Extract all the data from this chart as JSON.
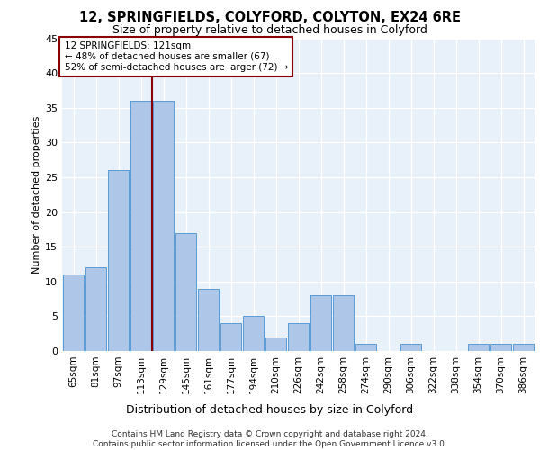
{
  "title1": "12, SPRINGFIELDS, COLYFORD, COLYTON, EX24 6RE",
  "title2": "Size of property relative to detached houses in Colyford",
  "xlabel": "Distribution of detached houses by size in Colyford",
  "ylabel": "Number of detached properties",
  "bin_labels": [
    "65sqm",
    "81sqm",
    "97sqm",
    "113sqm",
    "129sqm",
    "145sqm",
    "161sqm",
    "177sqm",
    "194sqm",
    "210sqm",
    "226sqm",
    "242sqm",
    "258sqm",
    "274sqm",
    "290sqm",
    "306sqm",
    "322sqm",
    "338sqm",
    "354sqm",
    "370sqm",
    "386sqm"
  ],
  "bar_heights": [
    11,
    12,
    26,
    36,
    36,
    17,
    9,
    4,
    5,
    2,
    4,
    8,
    8,
    1,
    0,
    1,
    0,
    0,
    1,
    1,
    1
  ],
  "bar_color": "#aec6e8",
  "bar_edge_color": "#5b9bd5",
  "vline_x_index": 3,
  "vline_color": "#8b0000",
  "annotation_text": "12 SPRINGFIELDS: 121sqm\n← 48% of detached houses are smaller (67)\n52% of semi-detached houses are larger (72) →",
  "annotation_box_color": "#ffffff",
  "annotation_box_edge": "#8b0000",
  "ylim": [
    0,
    45
  ],
  "yticks": [
    0,
    5,
    10,
    15,
    20,
    25,
    30,
    35,
    40,
    45
  ],
  "footer": "Contains HM Land Registry data © Crown copyright and database right 2024.\nContains public sector information licensed under the Open Government Licence v3.0.",
  "plot_bg_color": "#e8f0fa",
  "fig_bg_color": "#ffffff",
  "grid_color": "#ffffff",
  "title1_fontsize": 10.5,
  "title2_fontsize": 9,
  "ylabel_fontsize": 8,
  "xlabel_fontsize": 9,
  "tick_fontsize": 7.5,
  "footer_fontsize": 6.5,
  "annotation_fontsize": 7.5
}
